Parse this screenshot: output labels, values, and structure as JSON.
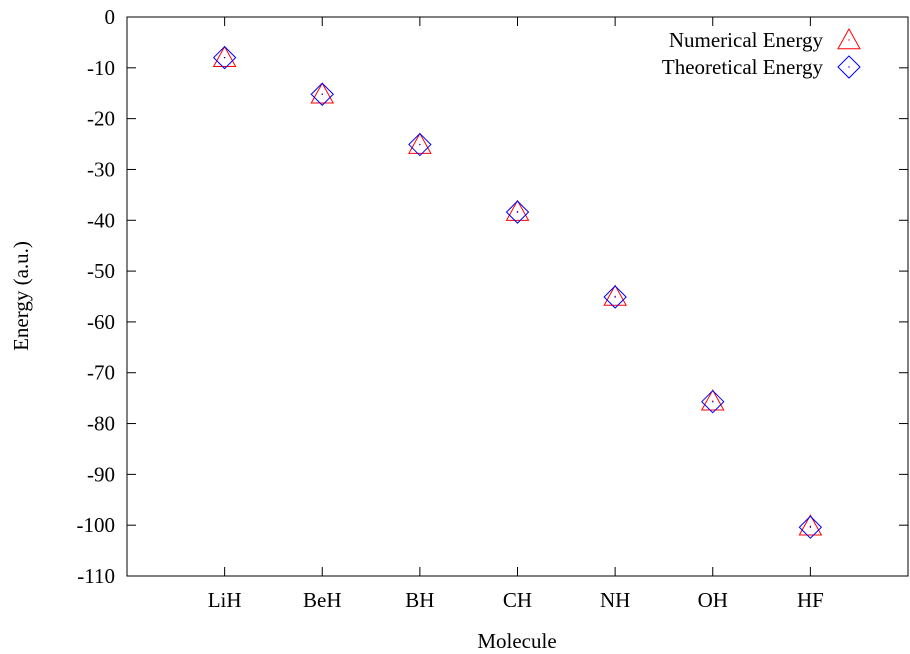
{
  "chart_data": {
    "type": "scatter",
    "title": "",
    "xlabel": "Molecule",
    "ylabel": "Energy (a.u.)",
    "categories": [
      "LiH",
      "BeH",
      "BH",
      "CH",
      "NH",
      "OH",
      "HF"
    ],
    "ylim": [
      -110,
      0
    ],
    "yticks": [
      "0",
      "-10",
      "-20",
      "-30",
      "-40",
      "-50",
      "-60",
      "-70",
      "-80",
      "-90",
      "-100",
      "-110"
    ],
    "ytick_values": [
      0,
      -10,
      -20,
      -30,
      -40,
      -50,
      -60,
      -70,
      -80,
      -90,
      -100,
      -110
    ],
    "grid": false,
    "legend_position": "top-right",
    "series": [
      {
        "name": "Numerical Energy",
        "marker": "triangle",
        "color": "#ff0000",
        "values": [
          -8.0,
          -15.2,
          -25.1,
          -38.3,
          -55.0,
          -75.6,
          -100.2
        ]
      },
      {
        "name": "Theoretical Energy",
        "marker": "diamond",
        "color": "#0000ff",
        "values": [
          -8.0,
          -15.2,
          -25.1,
          -38.4,
          -55.1,
          -75.7,
          -100.4
        ]
      }
    ]
  }
}
